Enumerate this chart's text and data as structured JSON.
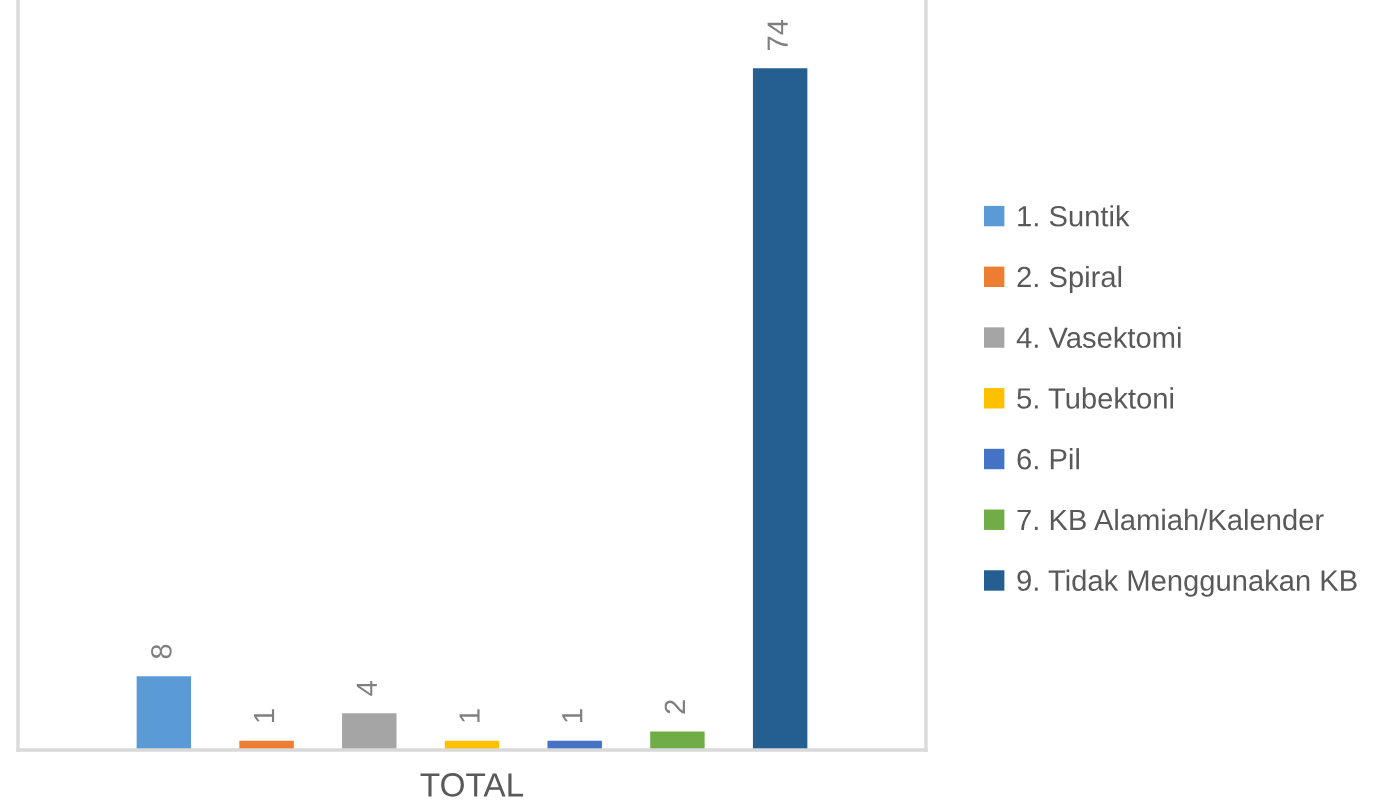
{
  "chart_data": {
    "type": "bar",
    "xlabel": "TOTAL",
    "stacked": true,
    "categories": [
      null,
      null,
      null,
      null,
      null,
      null,
      null
    ],
    "series": [
      {
        "name": "1. Suntik",
        "color": "#5b9bd5",
        "values": [
          8,
          null,
          null,
          null,
          null,
          null,
          null
        ]
      },
      {
        "name": "2. Spiral",
        "color": "#ed7d31",
        "values": [
          null,
          1,
          null,
          null,
          null,
          null,
          null
        ]
      },
      {
        "name": "4. Vasektomi",
        "color": "#a5a5a5",
        "values": [
          null,
          null,
          4,
          null,
          null,
          null,
          null
        ]
      },
      {
        "name": "5. Tubektoni",
        "color": "#ffc000",
        "values": [
          null,
          null,
          null,
          1,
          null,
          null,
          null
        ]
      },
      {
        "name": "6. Pil",
        "color": "#4472c4",
        "values": [
          null,
          null,
          null,
          null,
          1,
          null,
          null
        ]
      },
      {
        "name": "7. KB Alamiah/Kalender",
        "color": "#70ad47",
        "values": [
          null,
          null,
          null,
          null,
          null,
          2,
          null
        ]
      },
      {
        "name": "9. Tidak Menggunakan KB",
        "color": "#255e91",
        "values": [
          null,
          null,
          null,
          null,
          null,
          null,
          74
        ]
      }
    ],
    "data_labels": true,
    "legend": "right",
    "tick_labels": false,
    "grid": false
  }
}
